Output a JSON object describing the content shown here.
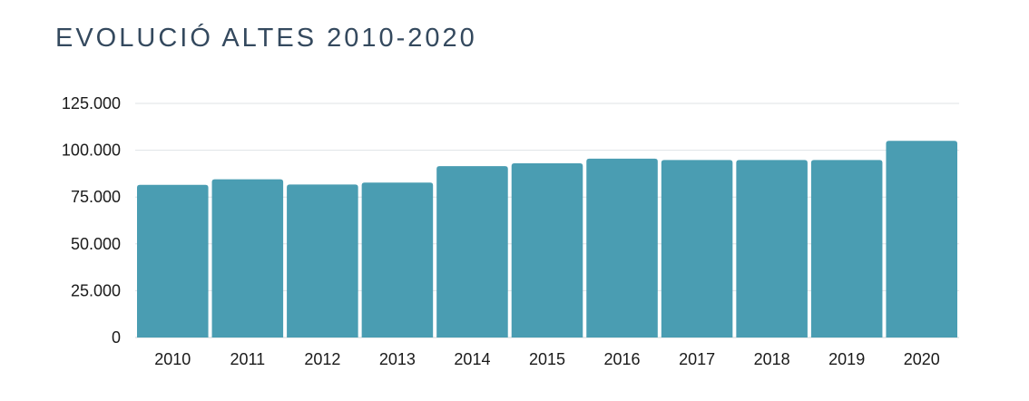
{
  "chart_data": {
    "type": "bar",
    "title": "EVOLUCIÓ ALTES 2010-2020",
    "xlabel": "",
    "ylabel": "",
    "categories": [
      "2010",
      "2011",
      "2012",
      "2013",
      "2014",
      "2015",
      "2016",
      "2017",
      "2018",
      "2019",
      "2020"
    ],
    "values": [
      81500,
      84500,
      81700,
      82700,
      91500,
      93000,
      95500,
      94800,
      94800,
      94800,
      105000
    ],
    "ylim": [
      0,
      125000
    ],
    "yticks": [
      0,
      25000,
      50000,
      75000,
      100000,
      125000
    ],
    "ytick_labels": [
      "0",
      "25.000",
      "50.000",
      "75.000",
      "100.000",
      "125.000"
    ],
    "grid": true,
    "colors": {
      "bar": "#4a9db2",
      "grid": "#dfe3e6",
      "axis": "#cfd4d8",
      "title": "#34495e"
    }
  }
}
